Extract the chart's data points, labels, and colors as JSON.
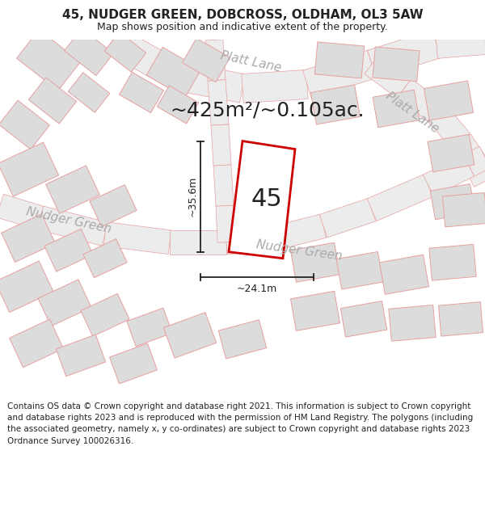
{
  "title": "45, NUDGER GREEN, DOBCROSS, OLDHAM, OL3 5AW",
  "subtitle": "Map shows position and indicative extent of the property.",
  "area_label": "~425m²/~0.105ac.",
  "property_number": "45",
  "dim_height": "~35.6m",
  "dim_width": "~24.1m",
  "footer": "Contains OS data © Crown copyright and database right 2021. This information is subject to Crown copyright and database rights 2023 and is reproduced with the permission of HM Land Registry. The polygons (including the associated geometry, namely x, y co-ordinates) are subject to Crown copyright and database rights 2023 Ordnance Survey 100026316.",
  "bg_color": "#ffffff",
  "map_bg": "#f7f5f3",
  "road_fill": "#ececec",
  "road_edge": "#e8a0a0",
  "building_fill": "#dcdcdc",
  "building_edge": "#e8a0a0",
  "property_fill": "#ffffff",
  "property_edge": "#cc0000",
  "dim_color": "#222222",
  "label_color": "#aaaaaa",
  "text_color": "#222222",
  "title_fontsize": 11,
  "subtitle_fontsize": 9,
  "area_fontsize": 18,
  "num_fontsize": 22,
  "street_fontsize": 11,
  "dim_fontsize": 9,
  "footer_fontsize": 7.5
}
